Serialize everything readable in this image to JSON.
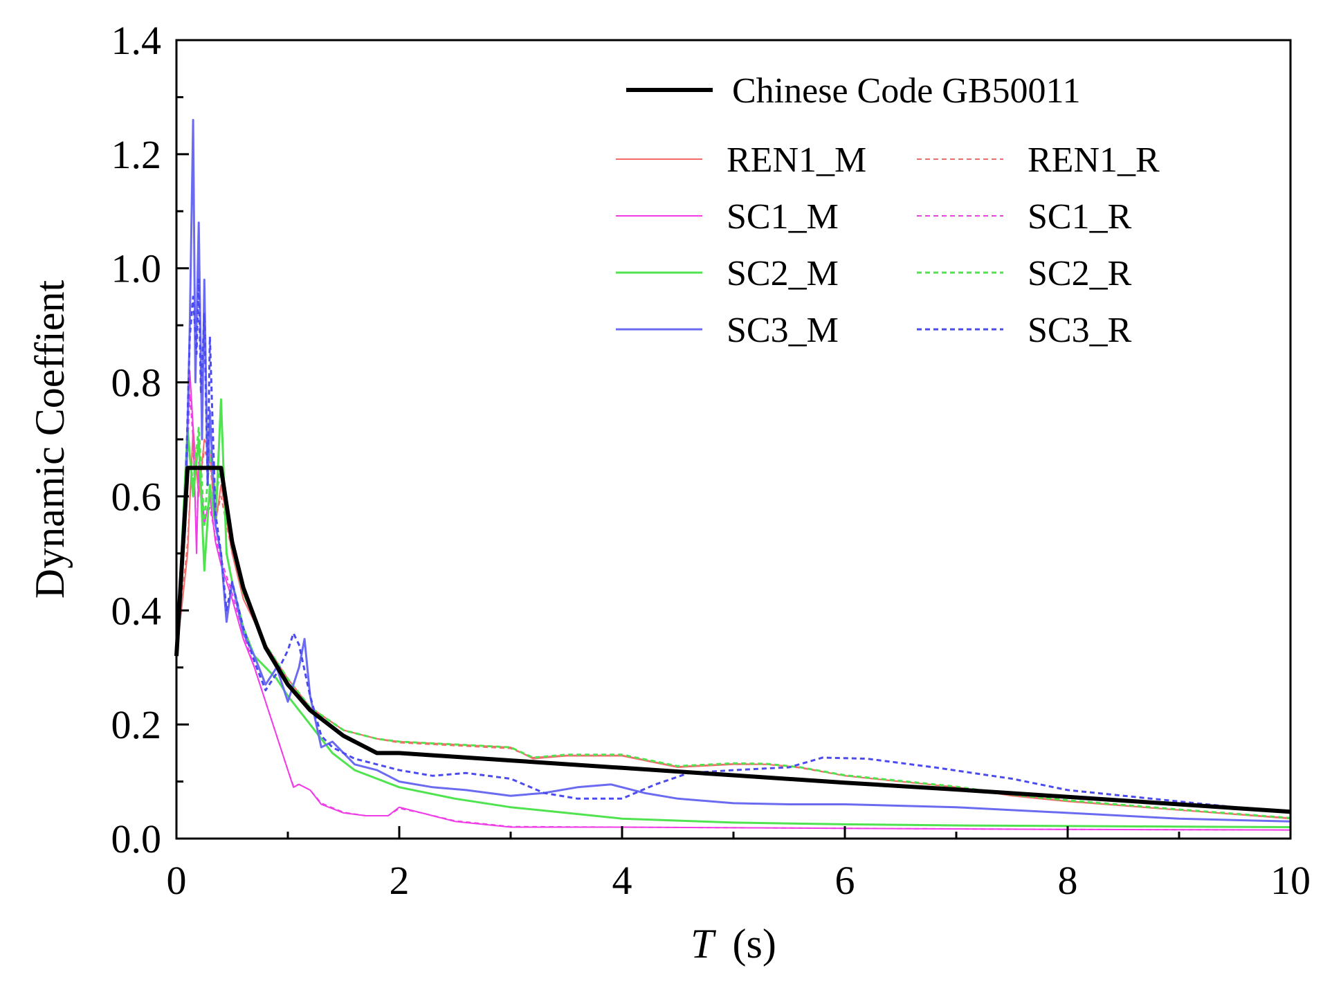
{
  "chart_data": {
    "type": "line",
    "title": "",
    "xlabel": "T",
    "xlabel_unit": "(s)",
    "ylabel": "Dynamic Coeffient",
    "xlim": [
      0,
      10
    ],
    "ylim": [
      0,
      1.4
    ],
    "x_ticks": [
      0,
      2,
      4,
      6,
      8,
      10
    ],
    "y_ticks": [
      0.0,
      0.2,
      0.4,
      0.6,
      0.8,
      1.0,
      1.2,
      1.4
    ],
    "x_tick_labels": [
      "0",
      "2",
      "4",
      "6",
      "8",
      "10"
    ],
    "y_tick_labels": [
      "0.0",
      "0.2",
      "0.4",
      "0.6",
      "0.8",
      "1.0",
      "1.2",
      "1.4"
    ],
    "grid": false,
    "legend_position": "top-right",
    "series": [
      {
        "name": "Chinese Code GB50011",
        "color": "#000000",
        "dash": "solid",
        "width": "heavy",
        "x": [
          0,
          0.1,
          0.4,
          0.5,
          0.6,
          0.8,
          1.0,
          1.2,
          1.5,
          1.8,
          2.0,
          3.0,
          4.0,
          5.0,
          6.0,
          7.0,
          8.0,
          9.0,
          10.0
        ],
        "y": [
          0.32,
          0.65,
          0.65,
          0.52,
          0.44,
          0.335,
          0.27,
          0.225,
          0.18,
          0.15,
          0.15,
          0.137,
          0.124,
          0.111,
          0.098,
          0.086,
          0.073,
          0.06,
          0.047
        ]
      },
      {
        "name": "REN1_M",
        "color": "#f26b6b",
        "dash": "solid",
        "width": "thin",
        "x": [
          0,
          0.1,
          0.15,
          0.2,
          0.25,
          0.3,
          0.35,
          0.4,
          0.5,
          0.6,
          0.8,
          1.0,
          1.2,
          1.5,
          1.8,
          2.0,
          2.5,
          3.0,
          3.2,
          3.5,
          4.0,
          4.5,
          5.0,
          5.3,
          5.6,
          6.0,
          6.5,
          7.0,
          7.5,
          8.0,
          9.0,
          10.0
        ],
        "y": [
          0.32,
          0.5,
          0.72,
          0.6,
          0.7,
          0.68,
          0.55,
          0.62,
          0.5,
          0.42,
          0.34,
          0.28,
          0.23,
          0.19,
          0.175,
          0.17,
          0.165,
          0.16,
          0.14,
          0.145,
          0.145,
          0.125,
          0.13,
          0.13,
          0.125,
          0.11,
          0.1,
          0.09,
          0.075,
          0.065,
          0.05,
          0.035
        ]
      },
      {
        "name": "REN1_R",
        "color": "#f26b6b",
        "dash": "dashed",
        "width": "thin",
        "x": [
          0,
          0.1,
          0.15,
          0.2,
          0.25,
          0.3,
          0.35,
          0.4,
          0.5,
          0.6,
          0.8,
          1.0,
          1.2,
          1.5,
          1.8,
          2.0,
          2.5,
          3.0,
          3.2,
          3.5,
          4.0,
          4.5,
          5.0,
          5.3,
          5.6,
          6.0,
          6.5,
          7.0,
          7.5,
          8.0,
          9.0,
          10.0
        ],
        "y": [
          0.32,
          0.52,
          0.7,
          0.62,
          0.68,
          0.66,
          0.56,
          0.6,
          0.5,
          0.43,
          0.34,
          0.28,
          0.23,
          0.19,
          0.175,
          0.168,
          0.163,
          0.158,
          0.142,
          0.146,
          0.146,
          0.126,
          0.131,
          0.13,
          0.124,
          0.11,
          0.1,
          0.09,
          0.076,
          0.066,
          0.05,
          0.036
        ]
      },
      {
        "name": "SC1_M",
        "color": "#f03ce6",
        "dash": "solid",
        "width": "thin",
        "x": [
          0,
          0.08,
          0.12,
          0.15,
          0.18,
          0.2,
          0.25,
          0.3,
          0.35,
          0.4,
          0.5,
          0.6,
          0.7,
          0.8,
          0.9,
          1.0,
          1.05,
          1.1,
          1.2,
          1.3,
          1.5,
          1.7,
          1.9,
          2.0,
          2.2,
          2.5,
          3.0,
          4.0,
          6.0,
          8.0,
          10.0
        ],
        "y": [
          0.32,
          0.6,
          0.82,
          0.72,
          0.5,
          0.65,
          0.55,
          0.6,
          0.52,
          0.48,
          0.42,
          0.35,
          0.3,
          0.24,
          0.18,
          0.12,
          0.09,
          0.095,
          0.085,
          0.06,
          0.045,
          0.04,
          0.04,
          0.055,
          0.045,
          0.03,
          0.02,
          0.02,
          0.018,
          0.016,
          0.015
        ]
      },
      {
        "name": "SC1_R",
        "color": "#f03ce6",
        "dash": "dashed",
        "width": "thin",
        "x": [
          0,
          0.08,
          0.12,
          0.15,
          0.18,
          0.2,
          0.25,
          0.3,
          0.35,
          0.4,
          0.5,
          0.6,
          0.7,
          0.8,
          0.9,
          1.0,
          1.05,
          1.1,
          1.2,
          1.3,
          1.5,
          1.7,
          1.9,
          2.0,
          2.2,
          2.5,
          3.0,
          4.0,
          6.0,
          8.0,
          10.0
        ],
        "y": [
          0.32,
          0.58,
          0.78,
          0.7,
          0.52,
          0.66,
          0.56,
          0.58,
          0.53,
          0.49,
          0.43,
          0.36,
          0.3,
          0.24,
          0.18,
          0.12,
          0.092,
          0.095,
          0.085,
          0.062,
          0.046,
          0.04,
          0.04,
          0.053,
          0.045,
          0.031,
          0.021,
          0.02,
          0.018,
          0.016,
          0.015
        ]
      },
      {
        "name": "SC2_M",
        "color": "#4fe34f",
        "dash": "solid",
        "width": "medium",
        "x": [
          0,
          0.1,
          0.15,
          0.2,
          0.25,
          0.3,
          0.35,
          0.4,
          0.45,
          0.5,
          0.6,
          0.7,
          0.8,
          0.9,
          1.0,
          1.2,
          1.4,
          1.6,
          1.8,
          2.0,
          2.5,
          3.0,
          3.5,
          4.0,
          5.0,
          6.0,
          7.0,
          8.0,
          9.0,
          10.0
        ],
        "y": [
          0.32,
          0.72,
          0.6,
          0.7,
          0.47,
          0.62,
          0.55,
          0.77,
          0.5,
          0.45,
          0.37,
          0.32,
          0.3,
          0.28,
          0.25,
          0.2,
          0.15,
          0.12,
          0.105,
          0.09,
          0.07,
          0.055,
          0.045,
          0.035,
          0.028,
          0.025,
          0.023,
          0.022,
          0.021,
          0.02
        ]
      },
      {
        "name": "SC2_R",
        "color": "#4fe34f",
        "dash": "dashed",
        "width": "medium",
        "x": [
          0,
          0.1,
          0.15,
          0.2,
          0.25,
          0.3,
          0.35,
          0.4,
          0.5,
          0.6,
          0.8,
          1.0,
          1.2,
          1.5,
          1.8,
          2.0,
          2.5,
          3.0,
          3.2,
          3.5,
          4.0,
          4.5,
          5.0,
          5.3,
          5.6,
          6.0,
          6.5,
          7.0,
          7.5,
          8.0,
          9.0,
          10.0
        ],
        "y": [
          0.32,
          0.7,
          0.62,
          0.72,
          0.55,
          0.68,
          0.6,
          0.65,
          0.51,
          0.43,
          0.34,
          0.28,
          0.23,
          0.19,
          0.175,
          0.17,
          0.165,
          0.16,
          0.142,
          0.147,
          0.147,
          0.127,
          0.132,
          0.131,
          0.125,
          0.111,
          0.101,
          0.091,
          0.077,
          0.067,
          0.051,
          0.036
        ]
      },
      {
        "name": "SC3_M",
        "color": "#6b6bf2",
        "dash": "solid",
        "width": "medium",
        "x": [
          0,
          0.08,
          0.12,
          0.15,
          0.17,
          0.2,
          0.23,
          0.25,
          0.28,
          0.3,
          0.35,
          0.4,
          0.45,
          0.5,
          0.6,
          0.7,
          0.8,
          0.9,
          1.0,
          1.1,
          1.15,
          1.2,
          1.3,
          1.4,
          1.6,
          1.8,
          2.0,
          2.3,
          2.6,
          3.0,
          3.3,
          3.6,
          3.9,
          4.2,
          4.5,
          5.0,
          5.5,
          6.0,
          7.0,
          8.0,
          9.0,
          10.0
        ],
        "y": [
          0.32,
          0.55,
          0.9,
          1.26,
          0.8,
          1.08,
          0.7,
          0.98,
          0.62,
          0.75,
          0.55,
          0.5,
          0.38,
          0.45,
          0.36,
          0.32,
          0.27,
          0.3,
          0.24,
          0.3,
          0.35,
          0.25,
          0.16,
          0.17,
          0.13,
          0.12,
          0.1,
          0.09,
          0.085,
          0.075,
          0.08,
          0.09,
          0.095,
          0.08,
          0.07,
          0.062,
          0.06,
          0.06,
          0.055,
          0.045,
          0.035,
          0.03
        ]
      },
      {
        "name": "SC3_R",
        "color": "#4b4bf0",
        "dash": "dashed",
        "width": "medium",
        "x": [
          0,
          0.08,
          0.12,
          0.15,
          0.18,
          0.2,
          0.22,
          0.25,
          0.28,
          0.3,
          0.35,
          0.4,
          0.45,
          0.5,
          0.6,
          0.7,
          0.8,
          0.9,
          1.0,
          1.05,
          1.1,
          1.2,
          1.3,
          1.4,
          1.6,
          1.8,
          2.0,
          2.3,
          2.6,
          3.0,
          3.3,
          3.6,
          4.0,
          4.3,
          4.6,
          5.0,
          5.5,
          5.8,
          6.2,
          6.8,
          7.5,
          8.0,
          9.0,
          10.0
        ],
        "y": [
          0.32,
          0.6,
          0.88,
          0.95,
          0.85,
          0.98,
          0.78,
          0.92,
          0.62,
          0.88,
          0.57,
          0.5,
          0.4,
          0.45,
          0.37,
          0.31,
          0.26,
          0.29,
          0.33,
          0.36,
          0.34,
          0.25,
          0.18,
          0.16,
          0.14,
          0.13,
          0.12,
          0.11,
          0.115,
          0.105,
          0.08,
          0.07,
          0.07,
          0.095,
          0.115,
          0.12,
          0.125,
          0.142,
          0.14,
          0.125,
          0.105,
          0.085,
          0.065,
          0.045
        ]
      }
    ]
  }
}
